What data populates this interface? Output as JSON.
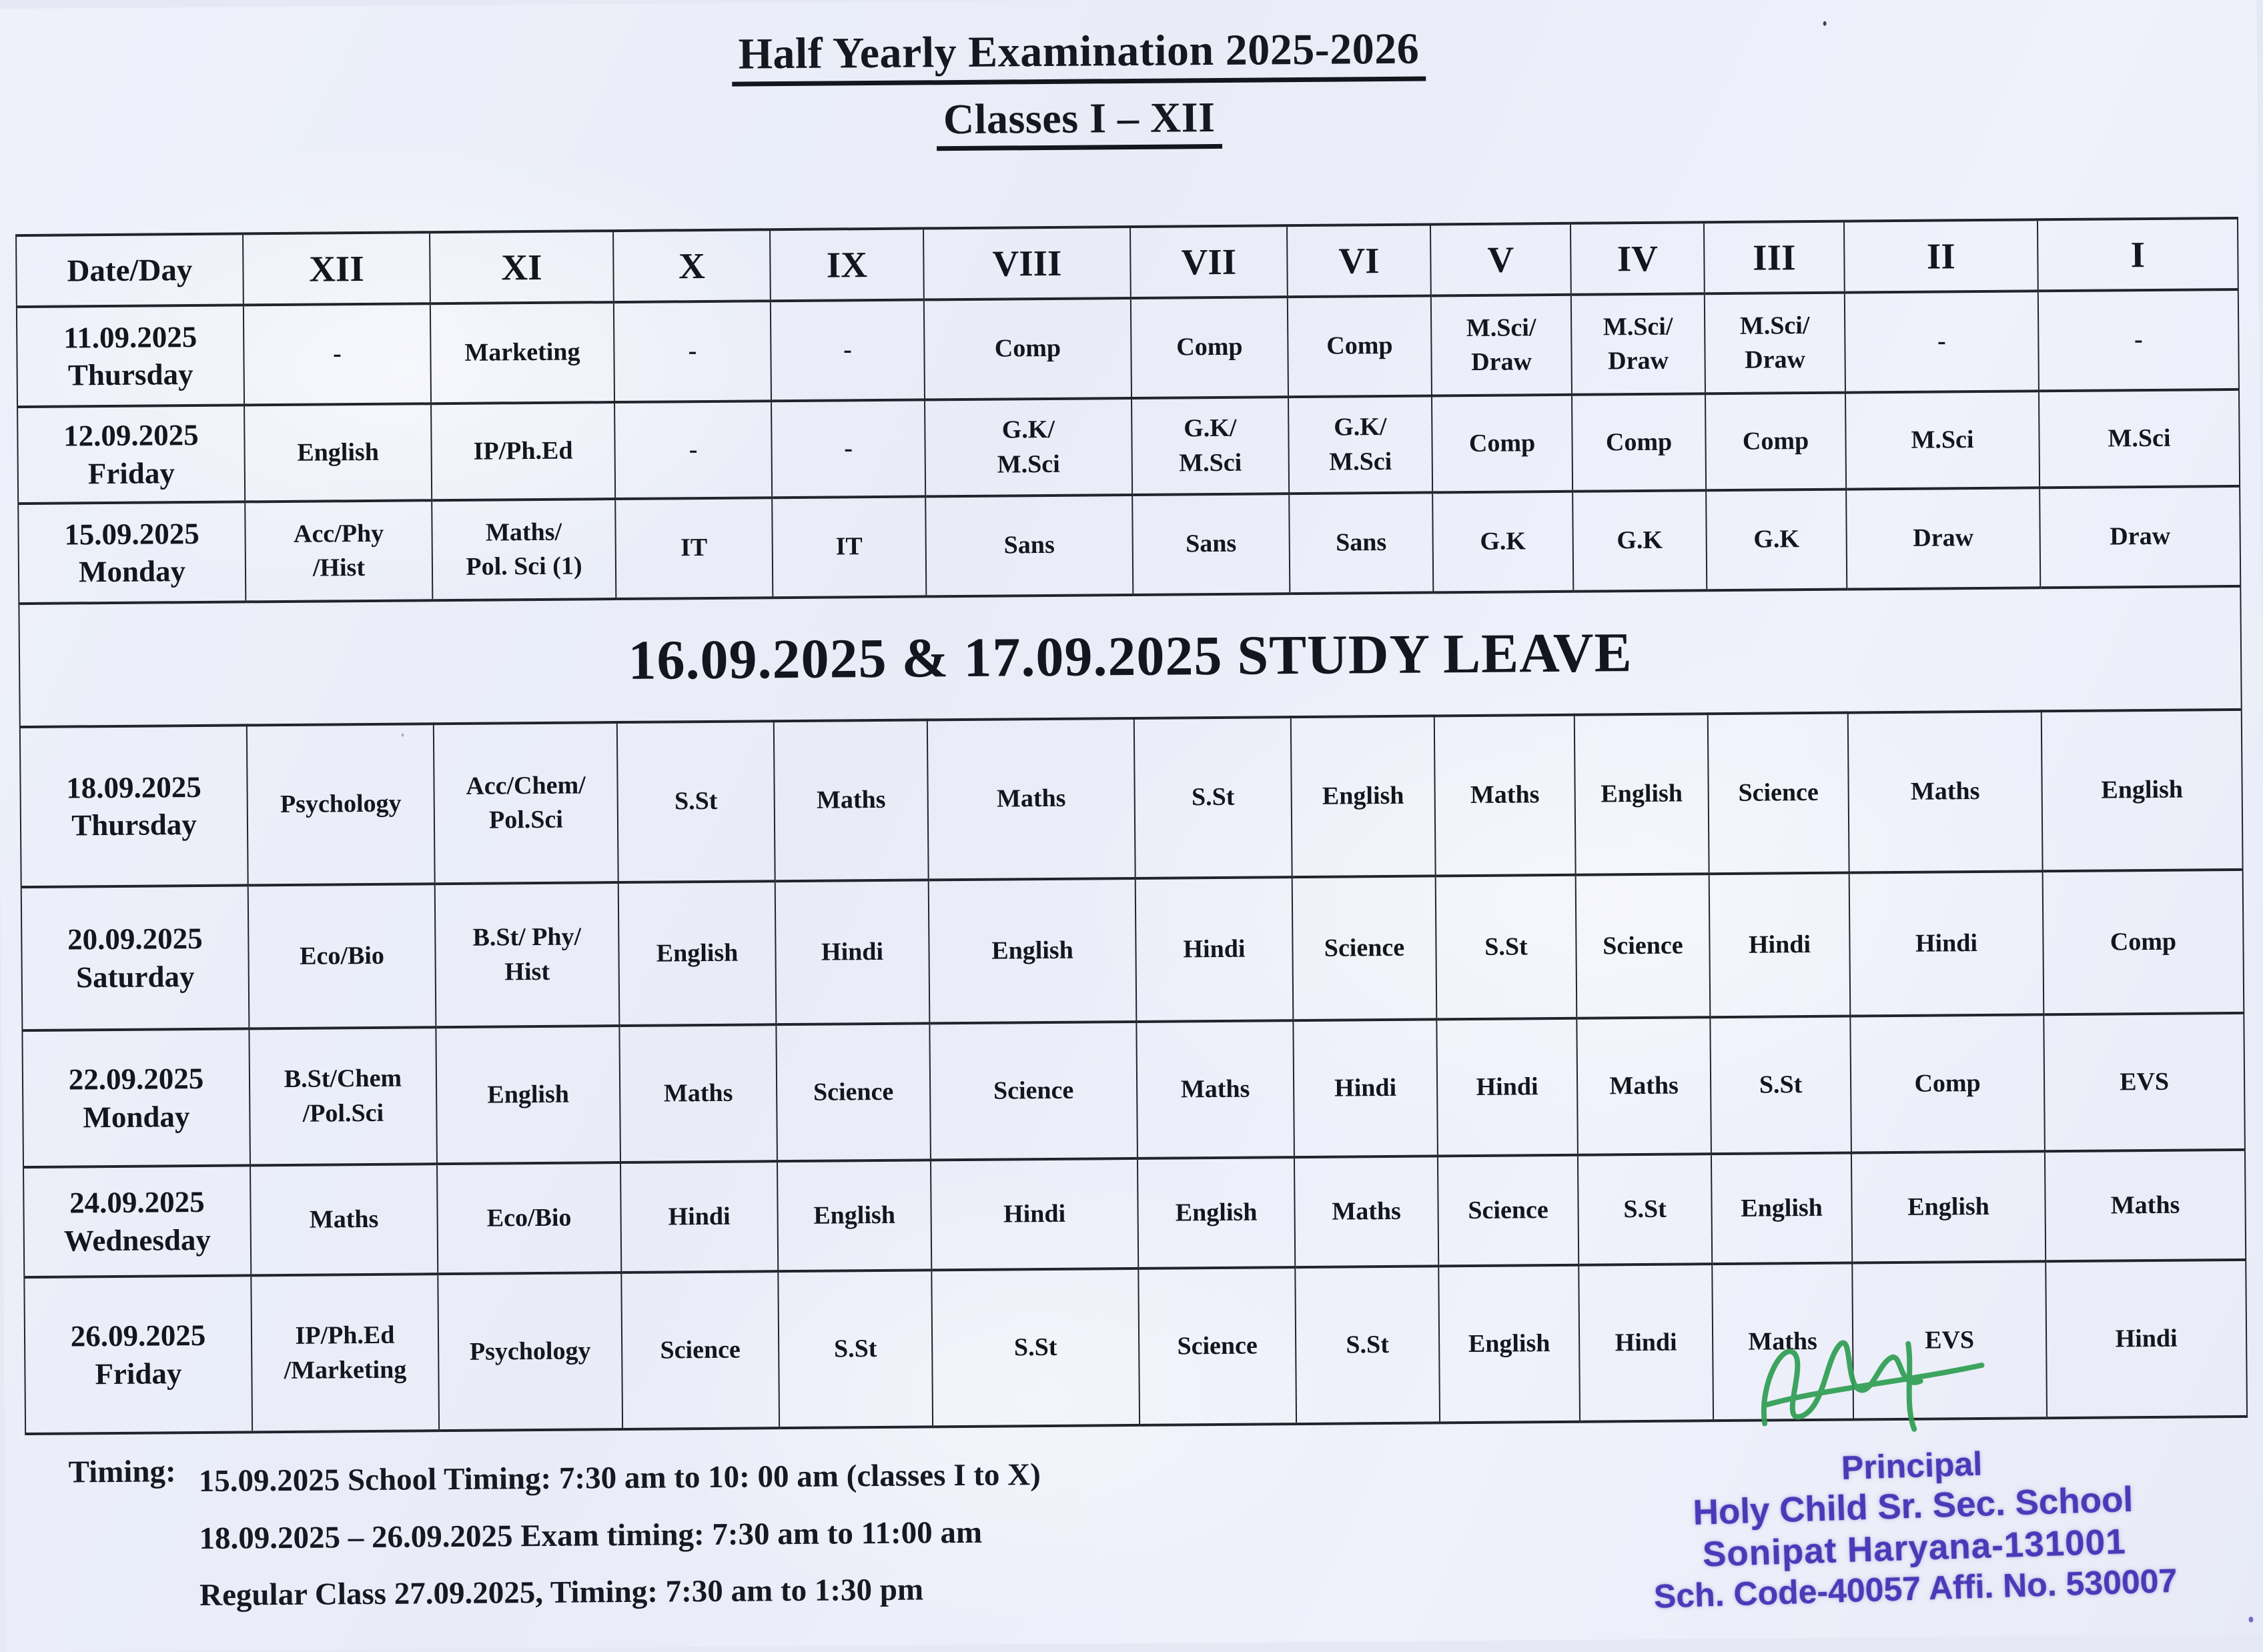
{
  "title": {
    "line1": "Half Yearly Examination 2025-2026",
    "line2": "Classes I – XII"
  },
  "table": {
    "headers": [
      "Date/Day",
      "XII",
      "XI",
      "X",
      "IX",
      "VIII",
      "VII",
      "VI",
      "V",
      "IV",
      "III",
      "II",
      "I"
    ],
    "rows": [
      {
        "type": "exam",
        "date": "11.09.2025",
        "day": "Thursday",
        "cells": [
          "-",
          "Marketing",
          "-",
          "-",
          "Comp",
          "Comp",
          "Comp",
          "M.Sci/\nDraw",
          "M.Sci/\nDraw",
          "M.Sci/\nDraw",
          "-",
          "-"
        ]
      },
      {
        "type": "exam",
        "date": "12.09.2025",
        "day": "Friday",
        "cells": [
          "English",
          "IP/Ph.Ed",
          "-",
          "-",
          "G.K/\nM.Sci",
          "G.K/\nM.Sci",
          "G.K/\nM.Sci",
          "Comp",
          "Comp",
          "Comp",
          "M.Sci",
          "M.Sci"
        ]
      },
      {
        "type": "exam",
        "date": "15.09.2025",
        "day": "Monday",
        "cells": [
          "Acc/Phy\n/Hist",
          "Maths/\nPol. Sci (1)",
          "IT",
          "IT",
          "Sans",
          "Sans",
          "Sans",
          "G.K",
          "G.K",
          "G.K",
          "Draw",
          "Draw"
        ]
      },
      {
        "type": "banner",
        "text": "16.09.2025 & 17.09.2025 STUDY LEAVE"
      },
      {
        "type": "exam",
        "date": "18.09.2025",
        "day": "Thursday",
        "cells": [
          "Psychology",
          "Acc/Chem/\nPol.Sci",
          "S.St",
          "Maths",
          "Maths",
          "S.St",
          "English",
          "Maths",
          "English",
          "Science",
          "Maths",
          "English"
        ]
      },
      {
        "type": "exam",
        "date": "20.09.2025",
        "day": "Saturday",
        "cells": [
          "Eco/Bio",
          "B.St/ Phy/\nHist",
          "English",
          "Hindi",
          "English",
          "Hindi",
          "Science",
          "S.St",
          "Science",
          "Hindi",
          "Hindi",
          "Comp"
        ]
      },
      {
        "type": "exam",
        "date": "22.09.2025",
        "day": "Monday",
        "cells": [
          "B.St/Chem\n/Pol.Sci",
          "English",
          "Maths",
          "Science",
          "Science",
          "Maths",
          "Hindi",
          "Hindi",
          "Maths",
          "S.St",
          "Comp",
          "EVS"
        ]
      },
      {
        "type": "exam",
        "date": "24.09.2025",
        "day": "Wednesday",
        "cells": [
          "Maths",
          "Eco/Bio",
          "Hindi",
          "English",
          "Hindi",
          "English",
          "Maths",
          "Science",
          "S.St",
          "English",
          "English",
          "Maths"
        ]
      },
      {
        "type": "exam",
        "date": "26.09.2025",
        "day": "Friday",
        "cells": [
          "IP/Ph.Ed\n/Marketing",
          "Psychology",
          "Science",
          "S.St",
          "S.St",
          "Science",
          "S.St",
          "English",
          "Hindi",
          "Maths",
          "EVS",
          "Hindi"
        ]
      }
    ]
  },
  "timing": {
    "label": "Timing:",
    "lines": [
      "15.09.2025 School Timing: 7:30 am to 10: 00 am (classes I to X)",
      "18.09.2025 – 26.09.2025 Exam timing: 7:30 am to 11:00 am",
      "Regular Class 27.09.2025, Timing: 7:30 am to 1:30 pm"
    ]
  },
  "stamp": {
    "lines": [
      "Principal",
      "Holy Child Sr. Sec. School",
      "Sonipat Haryana-131001",
      "Sch. Code-40057 Affi. No. 530007"
    ],
    "ink_color": "#4a3ab8",
    "signature_color": "#2f9e52"
  },
  "colors": {
    "paper": "#edeff8",
    "text": "#17171f",
    "table_border": "#23232c"
  }
}
